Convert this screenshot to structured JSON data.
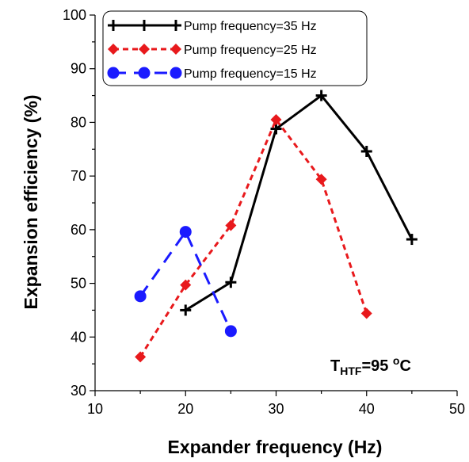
{
  "chart_data": {
    "type": "line",
    "xlabel": "Expander frequency (Hz)",
    "ylabel": "Expansion efficiency (%)",
    "xlim": [
      10,
      50
    ],
    "ylim": [
      30,
      100
    ],
    "xticks": [
      "10",
      "20",
      "30",
      "40",
      "50"
    ],
    "yticks": [
      "30",
      "40",
      "50",
      "60",
      "70",
      "80",
      "90",
      "100"
    ],
    "grid": false,
    "legend_position": "top-left",
    "series": [
      {
        "name": "Pump frequency=35 Hz",
        "color": "#000000",
        "marker": "plus",
        "dash": "solid",
        "x": [
          20,
          25,
          30,
          35,
          40,
          45
        ],
        "y": [
          45.0,
          50.2,
          78.8,
          85.0,
          74.6,
          58.2
        ]
      },
      {
        "name": "Pump frequency=25 Hz",
        "color": "#e8191c",
        "marker": "diamond",
        "dash": "dashed",
        "x": [
          15,
          20,
          25,
          30,
          35,
          40
        ],
        "y": [
          36.3,
          49.7,
          60.8,
          80.5,
          69.4,
          44.4
        ]
      },
      {
        "name": "Pump frequency=15 Hz",
        "color": "#1a1aff",
        "marker": "circle",
        "dash": "longdash",
        "x": [
          15,
          20,
          25
        ],
        "y": [
          47.6,
          59.6,
          41.1
        ]
      }
    ],
    "annotation": {
      "main": "T",
      "sub": "HTF",
      "value": "=95 ",
      "sup": "o",
      "unit": "C"
    }
  }
}
